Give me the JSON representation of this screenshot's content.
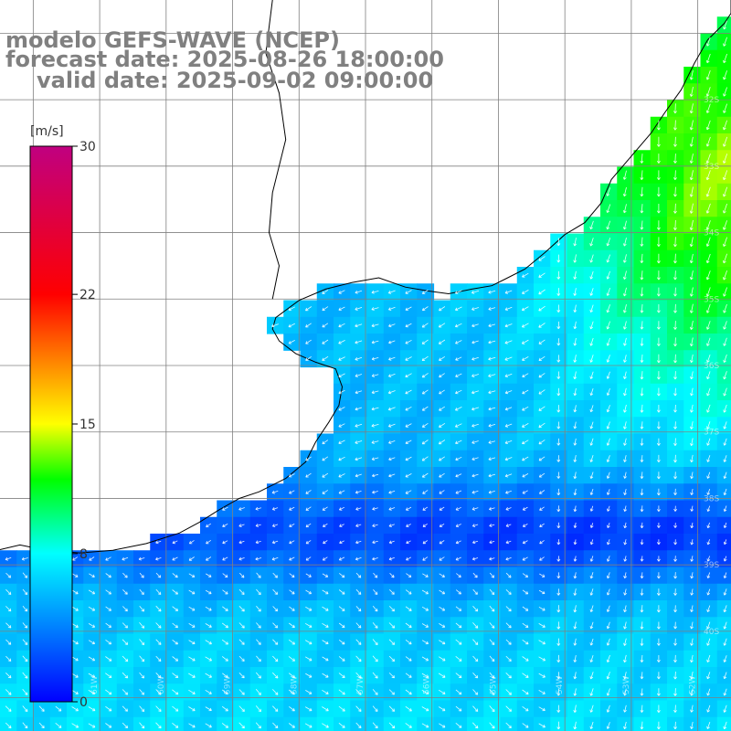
{
  "title": {
    "line1": "modelo GEFS-WAVE (NCEP)",
    "line2": "forecast date: 2025-08-26 18:00:00",
    "line3": "valid date: 2025-09-02 09:00:00"
  },
  "colorbar": {
    "unit": "[m/s]",
    "ticks": [
      "30",
      "22",
      "15",
      "8",
      "0"
    ],
    "tick_values": [
      30,
      22,
      15,
      8,
      0
    ],
    "min": 0,
    "max": 30,
    "stops": [
      {
        "v": 0,
        "c": "#0000ff"
      },
      {
        "v": 4,
        "c": "#0080ff"
      },
      {
        "v": 8,
        "c": "#00ffff"
      },
      {
        "v": 12,
        "c": "#00ff00"
      },
      {
        "v": 15,
        "c": "#ffff00"
      },
      {
        "v": 22,
        "c": "#ff0000"
      },
      {
        "v": 30,
        "c": "#c00080"
      }
    ]
  },
  "map": {
    "lat_range": [
      -41.5,
      -30.5
    ],
    "lon_range": [
      -62.5,
      -51.5
    ],
    "lat_labels": [
      "32S",
      "33S",
      "34S",
      "35S",
      "36S",
      "37S",
      "38S",
      "39S",
      "40S"
    ],
    "lon_labels": [
      "61W",
      "60W",
      "59W",
      "58W",
      "57W",
      "56W",
      "55W",
      "54W",
      "53W",
      "52W"
    ],
    "gridlines": true,
    "colors": {
      "land": "#ffffff",
      "coast": "#000000",
      "grid": "#808080"
    }
  }
}
